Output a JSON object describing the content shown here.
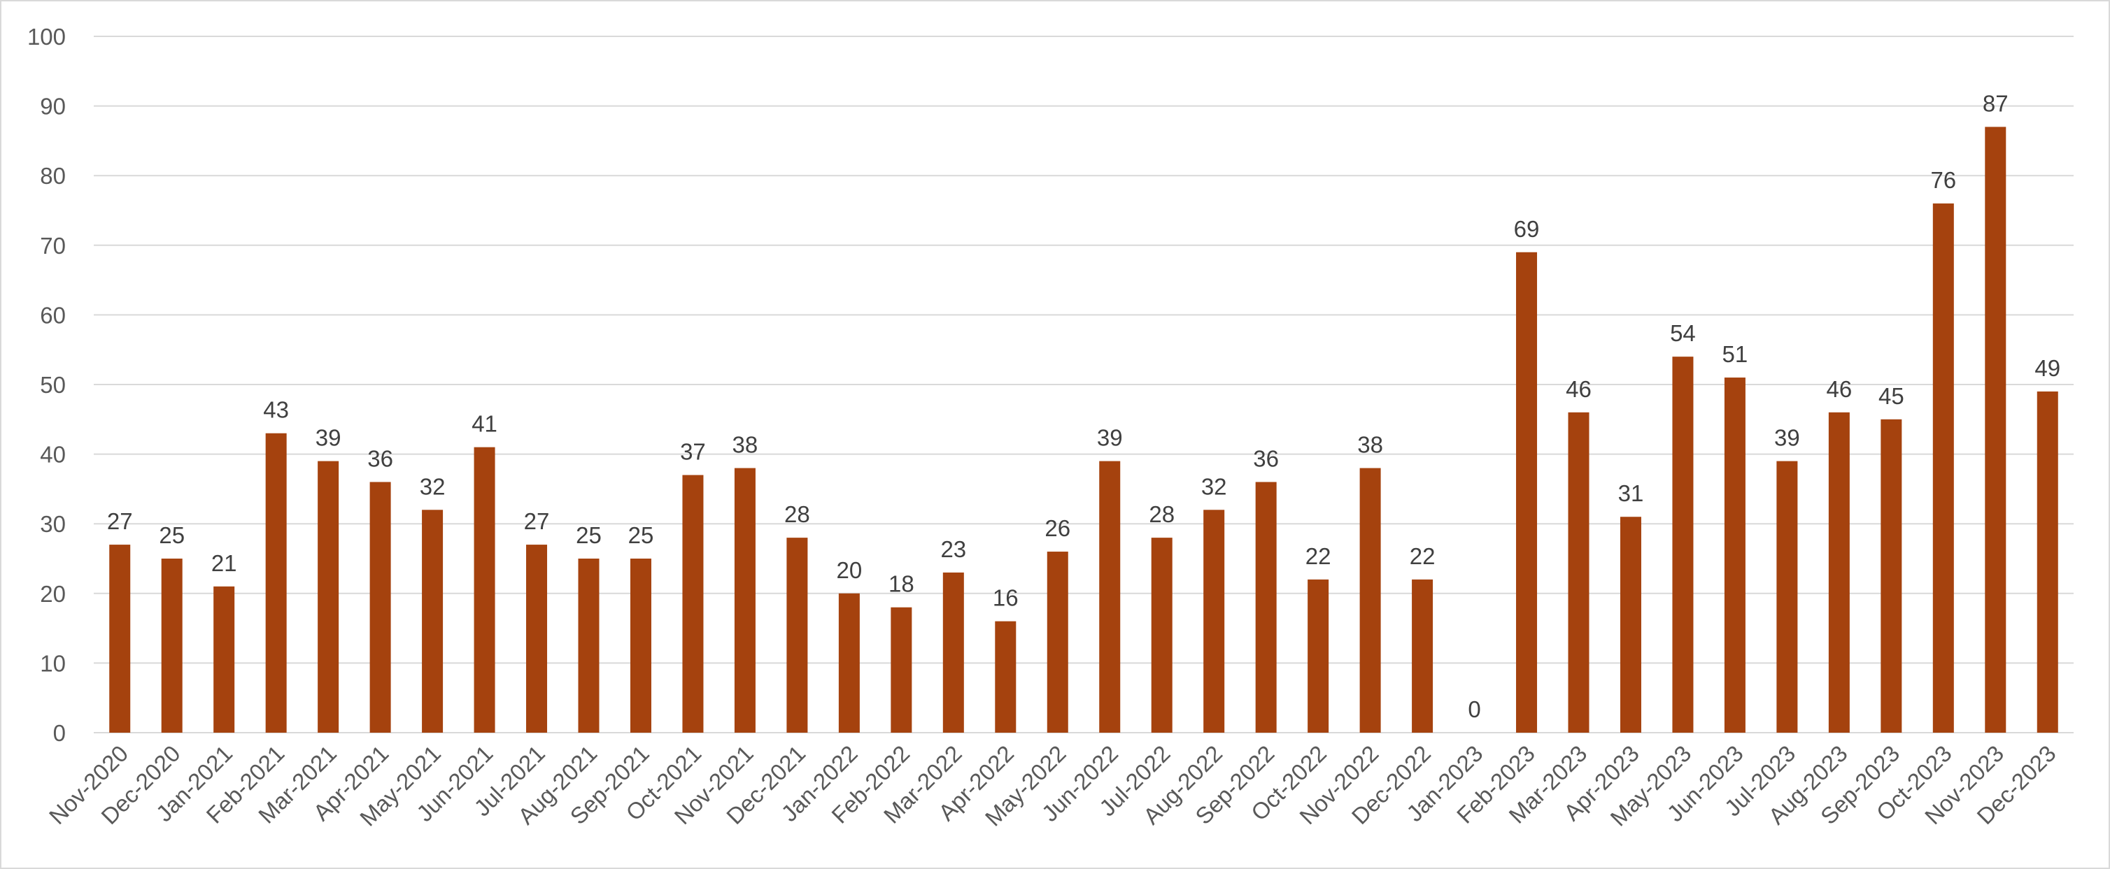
{
  "chart_data": {
    "type": "bar",
    "title": "",
    "xlabel": "",
    "ylabel": "",
    "ylim": [
      0,
      100
    ],
    "ytick_step": 10,
    "grid": true,
    "legend": "none",
    "bar_color": "#A5420E",
    "categories": [
      "Nov-2020",
      "Dec-2020",
      "Jan-2021",
      "Feb-2021",
      "Mar-2021",
      "Apr-2021",
      "May-2021",
      "Jun-2021",
      "Jul-2021",
      "Aug-2021",
      "Sep-2021",
      "Oct-2021",
      "Nov-2021",
      "Dec-2021",
      "Jan-2022",
      "Feb-2022",
      "Mar-2022",
      "Apr-2022",
      "May-2022",
      "Jun-2022",
      "Jul-2022",
      "Aug-2022",
      "Sep-2022",
      "Oct-2022",
      "Nov-2022",
      "Dec-2022",
      "Jan-2023",
      "Feb-2023",
      "Mar-2023",
      "Apr-2023",
      "May-2023",
      "Jun-2023",
      "Jul-2023",
      "Aug-2023",
      "Sep-2023",
      "Oct-2023",
      "Nov-2023",
      "Dec-2023"
    ],
    "values": [
      27,
      25,
      21,
      43,
      39,
      36,
      32,
      41,
      27,
      25,
      25,
      37,
      38,
      28,
      20,
      18,
      23,
      16,
      26,
      39,
      28,
      32,
      36,
      22,
      38,
      22,
      0,
      69,
      46,
      31,
      54,
      51,
      39,
      46,
      45,
      76,
      87,
      49
    ]
  }
}
